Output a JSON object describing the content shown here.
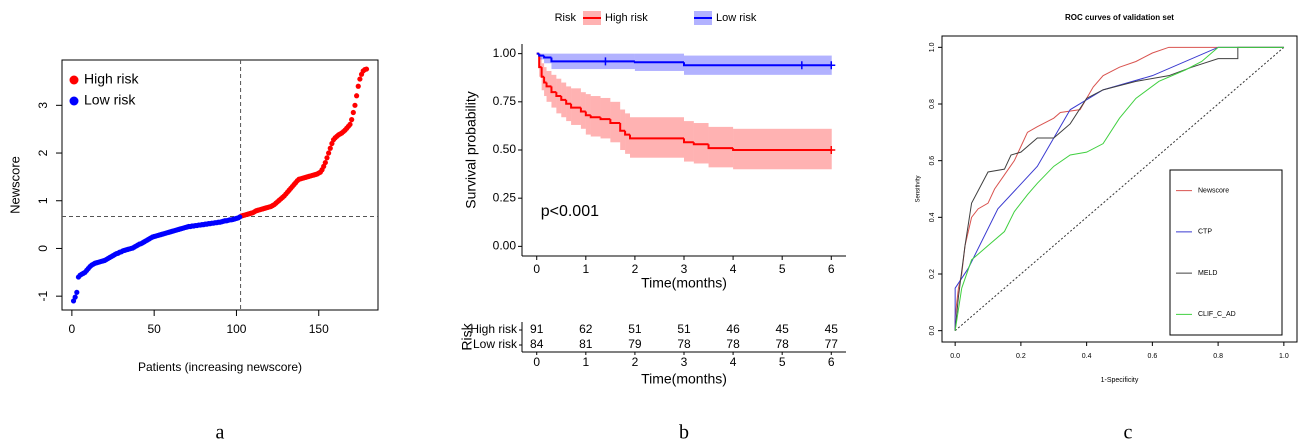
{
  "chart_data": [
    {
      "type": "scatter",
      "caption": "a",
      "xlabel": "Patients (increasing newscore)",
      "ylabel": "Newscore",
      "xlim": [
        -6,
        186
      ],
      "ylim": [
        -1.29,
        3.95
      ],
      "xticks": [
        0,
        50,
        100,
        150
      ],
      "yticks": [
        -1,
        0,
        1,
        2,
        3
      ],
      "vline": 102.5,
      "hline": 0.67,
      "legend": "top-left",
      "series": [
        {
          "name": "High risk",
          "color": "#ff0000",
          "x": [
            103,
            104,
            105,
            106,
            107,
            108,
            109,
            110,
            111,
            112,
            113,
            114,
            115,
            116,
            117,
            118,
            119,
            120,
            121,
            122,
            123,
            124,
            125,
            126,
            127,
            128,
            129,
            130,
            131,
            132,
            133,
            134,
            135,
            136,
            137,
            138,
            139,
            140,
            141,
            142,
            143,
            144,
            145,
            146,
            147,
            148,
            149,
            150,
            151,
            152,
            153,
            154,
            155,
            156,
            157,
            158,
            159,
            160,
            161,
            162,
            163,
            164,
            165,
            166,
            167,
            168,
            169,
            170,
            171,
            172,
            173,
            174,
            175,
            176,
            177,
            178,
            179
          ],
          "values": [
            0.68,
            0.69,
            0.7,
            0.71,
            0.72,
            0.73,
            0.74,
            0.75,
            0.77,
            0.79,
            0.8,
            0.81,
            0.82,
            0.83,
            0.84,
            0.85,
            0.86,
            0.87,
            0.88,
            0.9,
            0.92,
            0.95,
            0.98,
            1.01,
            1.04,
            1.07,
            1.1,
            1.14,
            1.18,
            1.22,
            1.26,
            1.3,
            1.34,
            1.38,
            1.42,
            1.45,
            1.46,
            1.47,
            1.48,
            1.49,
            1.5,
            1.51,
            1.52,
            1.53,
            1.54,
            1.55,
            1.56,
            1.58,
            1.6,
            1.65,
            1.72,
            1.8,
            1.9,
            2.0,
            2.1,
            2.2,
            2.28,
            2.32,
            2.35,
            2.38,
            2.4,
            2.42,
            2.45,
            2.48,
            2.52,
            2.56,
            2.6,
            2.7,
            2.85,
            3.0,
            3.2,
            3.4,
            3.55,
            3.65,
            3.72,
            3.75,
            3.76
          ]
        },
        {
          "name": "Low risk",
          "color": "#0000ff",
          "x": [
            1,
            2,
            3,
            4,
            5,
            6,
            7,
            8,
            9,
            10,
            11,
            12,
            13,
            14,
            15,
            16,
            17,
            18,
            19,
            20,
            21,
            22,
            23,
            24,
            25,
            26,
            27,
            28,
            29,
            30,
            31,
            32,
            33,
            34,
            35,
            36,
            37,
            38,
            39,
            40,
            41,
            42,
            43,
            44,
            45,
            46,
            47,
            48,
            49,
            50,
            51,
            52,
            53,
            54,
            55,
            56,
            57,
            58,
            59,
            60,
            61,
            62,
            63,
            64,
            65,
            66,
            67,
            68,
            69,
            70,
            71,
            72,
            73,
            74,
            75,
            76,
            77,
            78,
            79,
            80,
            81,
            82,
            83,
            84,
            85,
            86,
            87,
            88,
            89,
            90,
            91,
            92,
            93,
            94,
            95,
            96,
            97,
            98,
            99,
            100,
            101,
            102
          ],
          "values": [
            -1.1,
            -1.02,
            -0.92,
            -0.6,
            -0.56,
            -0.54,
            -0.52,
            -0.5,
            -0.46,
            -0.42,
            -0.38,
            -0.35,
            -0.33,
            -0.31,
            -0.3,
            -0.29,
            -0.28,
            -0.27,
            -0.26,
            -0.25,
            -0.23,
            -0.21,
            -0.19,
            -0.17,
            -0.15,
            -0.13,
            -0.11,
            -0.1,
            -0.08,
            -0.07,
            -0.05,
            -0.04,
            -0.03,
            -0.02,
            -0.01,
            0.0,
            0.01,
            0.03,
            0.05,
            0.07,
            0.09,
            0.1,
            0.12,
            0.14,
            0.16,
            0.18,
            0.2,
            0.22,
            0.24,
            0.25,
            0.26,
            0.27,
            0.28,
            0.29,
            0.3,
            0.31,
            0.32,
            0.33,
            0.34,
            0.35,
            0.36,
            0.37,
            0.38,
            0.39,
            0.4,
            0.41,
            0.42,
            0.43,
            0.44,
            0.45,
            0.46,
            0.46,
            0.47,
            0.47,
            0.48,
            0.48,
            0.49,
            0.49,
            0.5,
            0.5,
            0.51,
            0.51,
            0.52,
            0.52,
            0.53,
            0.53,
            0.54,
            0.54,
            0.55,
            0.55,
            0.56,
            0.57,
            0.58,
            0.58,
            0.59,
            0.6,
            0.6,
            0.61,
            0.62,
            0.63,
            0.64,
            0.66
          ]
        }
      ]
    },
    {
      "type": "survival",
      "caption": "b",
      "legend_title": "Risk",
      "xlabel": "Time(months)",
      "ylabel": "Survival probability",
      "annotation": "p<0.001",
      "xlim": [
        -0.3,
        6.3
      ],
      "ylim": [
        -0.05,
        1.05
      ],
      "xticks": [
        0,
        1,
        2,
        3,
        4,
        5,
        6
      ],
      "yticks": [
        {
          "value": 0,
          "label": "0.00"
        },
        0.25,
        {
          "value": 0.5,
          "label": "0.50"
        },
        0.75,
        {
          "value": 1,
          "label": "1.00"
        }
      ],
      "legend": "top",
      "series": [
        {
          "name": "High risk",
          "color": "#ff0000",
          "x": [
            0,
            0.05,
            0.1,
            0.15,
            0.2,
            0.3,
            0.4,
            0.5,
            0.6,
            0.7,
            0.9,
            1.0,
            1.1,
            1.3,
            1.5,
            1.7,
            1.8,
            1.9,
            3.0,
            3.2,
            3.5,
            4.0,
            6.0
          ],
          "values": [
            1,
            0.93,
            0.88,
            0.85,
            0.83,
            0.8,
            0.78,
            0.76,
            0.74,
            0.72,
            0.7,
            0.68,
            0.67,
            0.66,
            0.64,
            0.6,
            0.58,
            0.56,
            0.54,
            0.53,
            0.51,
            0.5,
            0.5
          ],
          "lower": [
            1,
            0.88,
            0.81,
            0.78,
            0.75,
            0.72,
            0.69,
            0.67,
            0.65,
            0.63,
            0.61,
            0.58,
            0.57,
            0.56,
            0.54,
            0.5,
            0.48,
            0.46,
            0.44,
            0.43,
            0.41,
            0.4,
            0.4
          ],
          "upper": [
            1,
            0.98,
            0.95,
            0.93,
            0.91,
            0.89,
            0.87,
            0.85,
            0.83,
            0.82,
            0.8,
            0.79,
            0.78,
            0.77,
            0.75,
            0.71,
            0.69,
            0.67,
            0.65,
            0.64,
            0.62,
            0.61,
            0.61
          ],
          "censor_x": [
            6
          ],
          "censor_values": [
            0.5
          ]
        },
        {
          "name": "Low risk",
          "color": "#0000ff",
          "x": [
            0,
            0.05,
            0.15,
            0.3,
            2.0,
            3.0,
            6.0
          ],
          "values": [
            1,
            0.99,
            0.98,
            0.96,
            0.955,
            0.94,
            0.94
          ],
          "lower": [
            1,
            0.97,
            0.95,
            0.92,
            0.91,
            0.89,
            0.89
          ],
          "upper": [
            1,
            1,
            1,
            1,
            1,
            0.99,
            0.99
          ],
          "censor_x": [
            1.4,
            5.4,
            6
          ],
          "censor_values": [
            0.96,
            0.94,
            0.94
          ]
        }
      ],
      "risk_table": {
        "title": "Risk",
        "xlabel": "Time(months)",
        "times": [
          0,
          1,
          2,
          3,
          4,
          5,
          6
        ],
        "rows": [
          {
            "name": "High risk",
            "color": "#ff0000",
            "values": [
              91,
              62,
              51,
              51,
              46,
              45,
              45
            ]
          },
          {
            "name": "Low risk",
            "color": "#0000ff",
            "values": [
              84,
              81,
              79,
              78,
              78,
              78,
              77
            ]
          }
        ]
      }
    },
    {
      "type": "line",
      "caption": "c",
      "title": "ROC curves of validation set",
      "xlabel": "1-Specificity",
      "ylabel": "Sensitivity",
      "xlim": [
        -0.04,
        1.04
      ],
      "ylim": [
        -0.04,
        1.04
      ],
      "xticks": [
        {
          "value": 0,
          "label": "0.0"
        },
        0.2,
        0.4,
        0.6,
        0.8,
        {
          "value": 1,
          "label": "1.0"
        }
      ],
      "yticks": [
        {
          "value": 0,
          "label": "0.0"
        },
        0.2,
        0.4,
        0.6,
        0.8,
        {
          "value": 1,
          "label": "1.0"
        }
      ],
      "diagonal": true,
      "legend": "bottom-right",
      "series": [
        {
          "name": "Newscore",
          "color": "#d9534f",
          "x": [
            0,
            0,
            0.01,
            0.02,
            0.03,
            0.04,
            0.05,
            0.07,
            0.1,
            0.12,
            0.15,
            0.18,
            0.2,
            0.22,
            0.25,
            0.3,
            0.32,
            0.38,
            0.4,
            0.42,
            0.45,
            0.5,
            0.55,
            0.6,
            0.65,
            1
          ],
          "values": [
            0,
            0.05,
            0.15,
            0.2,
            0.3,
            0.35,
            0.4,
            0.43,
            0.45,
            0.5,
            0.55,
            0.6,
            0.65,
            0.7,
            0.72,
            0.75,
            0.77,
            0.78,
            0.82,
            0.86,
            0.9,
            0.93,
            0.95,
            0.98,
            1,
            1
          ]
        },
        {
          "name": "CTP",
          "color": "#3a3ad0",
          "x": [
            0,
            0,
            0.04,
            0.13,
            0.25,
            0.35,
            0.45,
            0.6,
            0.8,
            1
          ],
          "values": [
            0,
            0.15,
            0.22,
            0.43,
            0.58,
            0.78,
            0.85,
            0.9,
            1,
            1
          ]
        },
        {
          "name": "MELD",
          "color": "#404040",
          "x": [
            0,
            0.01,
            0.03,
            0.05,
            0.1,
            0.15,
            0.17,
            0.2,
            0.25,
            0.3,
            0.35,
            0.4,
            0.45,
            0.55,
            0.65,
            0.72,
            0.8,
            0.86,
            0.86,
            1
          ],
          "values": [
            0,
            0.12,
            0.3,
            0.45,
            0.56,
            0.57,
            0.62,
            0.63,
            0.68,
            0.68,
            0.73,
            0.82,
            0.85,
            0.88,
            0.9,
            0.93,
            0.96,
            0.96,
            1,
            1
          ]
        },
        {
          "name": "CLIF_C_AD",
          "color": "#40d040",
          "x": [
            0,
            0.02,
            0.05,
            0.1,
            0.15,
            0.18,
            0.22,
            0.25,
            0.3,
            0.35,
            0.4,
            0.45,
            0.5,
            0.55,
            0.62,
            0.7,
            0.75,
            0.8,
            1
          ],
          "values": [
            0,
            0.15,
            0.25,
            0.3,
            0.35,
            0.42,
            0.48,
            0.52,
            0.58,
            0.62,
            0.63,
            0.66,
            0.75,
            0.82,
            0.88,
            0.92,
            0.95,
            1,
            1
          ]
        }
      ]
    }
  ]
}
